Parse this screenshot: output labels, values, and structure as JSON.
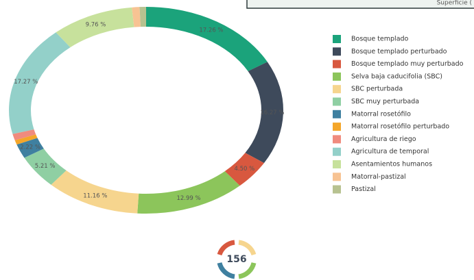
{
  "header_text": "Superficie (",
  "page_number": "156",
  "chart_data": {
    "type": "donut",
    "categories": [
      "Bosque templado",
      "Bosque templado perturbado",
      "Bosque templado muy perturbado",
      "Selva baja caducifolia (SBC)",
      "SBC perturbada",
      "SBC muy perturbada",
      "Matorral rosetófilo",
      "Matorral rosetófilo perturbado",
      "Agricultura de riego",
      "Agricultura de temporal",
      "Asentamientos humanos",
      "Matorral-pastizal",
      "Pastizal"
    ],
    "values": [
      17.26,
      16.27,
      4.5,
      12.99,
      11.16,
      5.21,
      2.22,
      0.7,
      1.0,
      17.27,
      9.76,
      0.9,
      0.76
    ],
    "value_labels": [
      "17.26 %",
      "16.27 %",
      "4.50 %",
      "12.99 %",
      "11.16 %",
      "5.21 %",
      "2.22 %",
      null,
      null,
      "17.27 %",
      "9.76 %",
      null,
      null
    ],
    "colors": [
      "#1ba37b",
      "#3e4a5b",
      "#d8583f",
      "#8cc55b",
      "#f6d58e",
      "#8fcfa3",
      "#3f80a0",
      "#f4a62a",
      "#f08b7e",
      "#93d0c9",
      "#c7e19c",
      "#f7c393",
      "#b7c290"
    ]
  }
}
